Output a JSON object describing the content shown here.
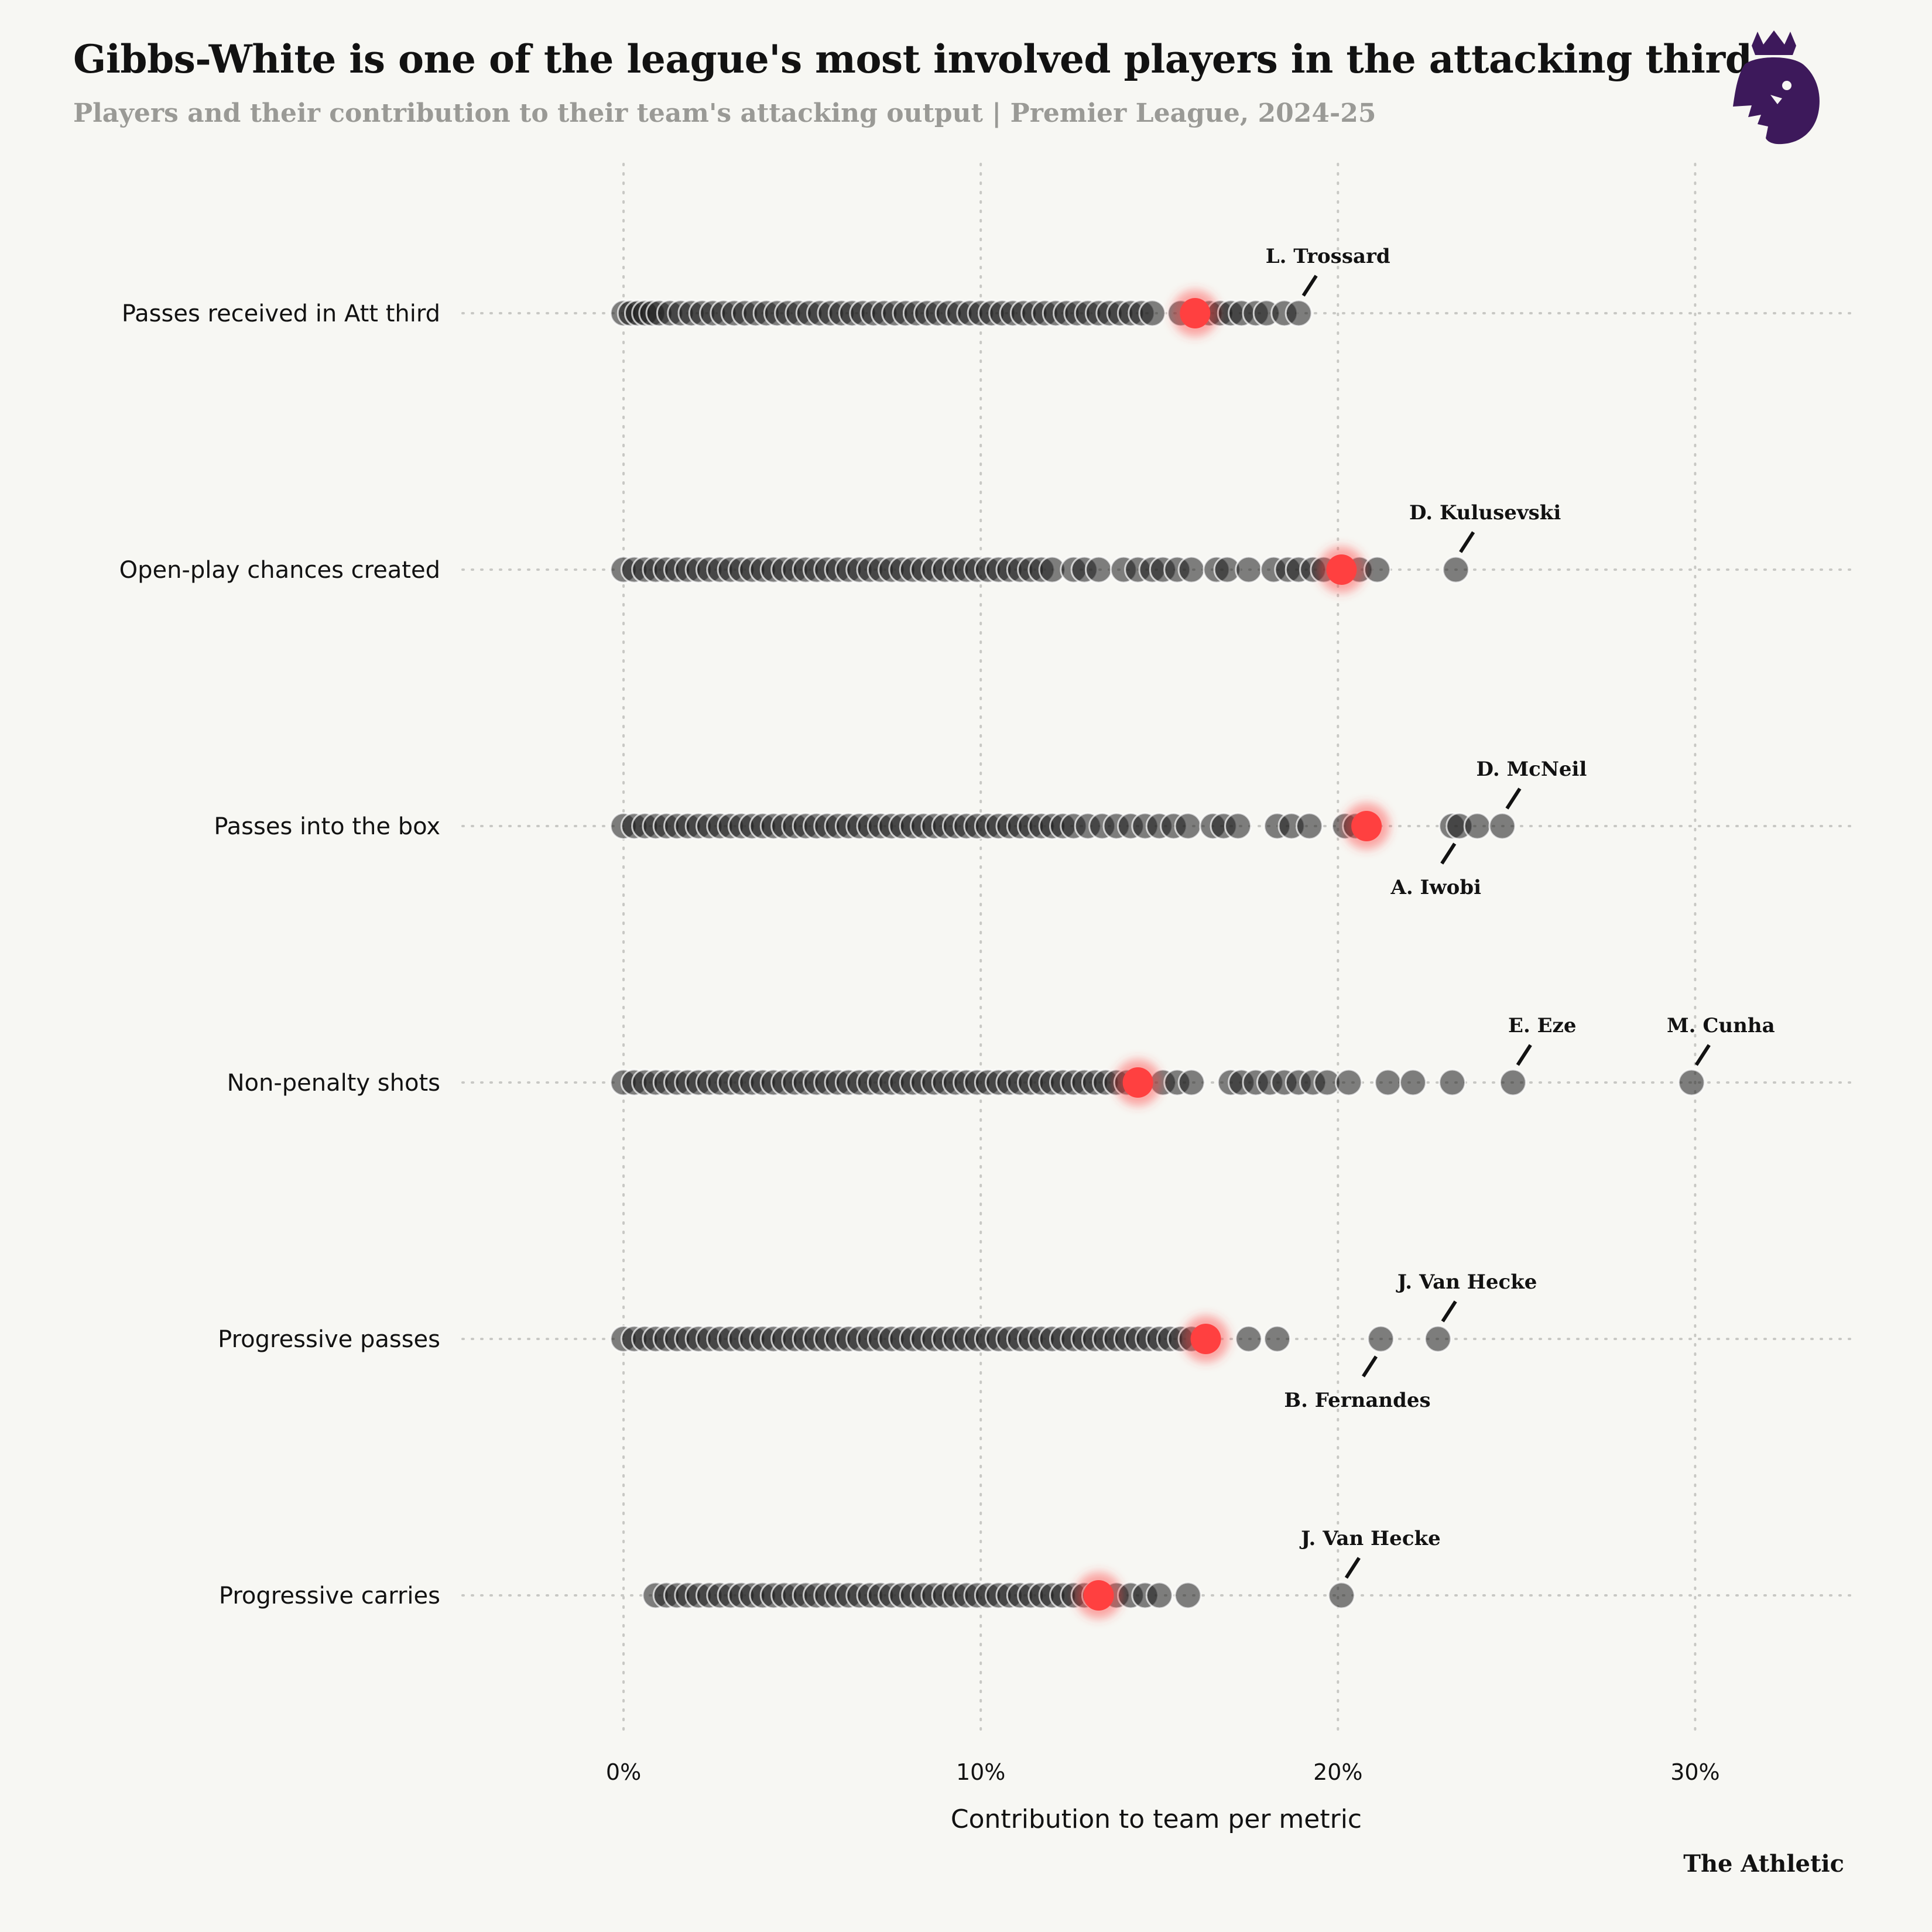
{
  "header": {
    "title": "Gibbs-White is one of the league's most involved players in the attacking third",
    "subtitle": "Players and their contribution to their team's attacking output | Premier League, 2024-25"
  },
  "footer": {
    "source": "The Athletic"
  },
  "colors": {
    "background": "#f7f7f3",
    "dot": "#1a1a1a",
    "highlight": "#ff4040",
    "grid": "#c8c8c4"
  },
  "icons": {
    "logo": "premier-league-lion-icon"
  },
  "chart_data": {
    "type": "scatter",
    "subtype": "strip-plot",
    "xlabel": "Contribution to team per metric",
    "xlim": [
      -5,
      34.5
    ],
    "xticks": [
      0,
      10,
      20,
      30
    ],
    "xtick_labels": [
      "0%",
      "10%",
      "20%",
      "30%"
    ],
    "grid": true,
    "categories": [
      "Passes received in Att third",
      "Open-play chances created",
      "Passes into the box",
      "Non-penalty shots",
      "Progressive passes",
      "Progressive carries"
    ],
    "series": [
      {
        "highlight": 16.0,
        "values": [
          0,
          0.2,
          0.4,
          0.6,
          0.8,
          1.0,
          1.3,
          1.6,
          1.9,
          2.2,
          2.5,
          2.8,
          3.1,
          3.4,
          3.7,
          4.0,
          4.3,
          4.6,
          4.9,
          5.2,
          5.5,
          5.8,
          6.1,
          6.4,
          6.7,
          7.0,
          7.3,
          7.6,
          7.9,
          8.2,
          8.5,
          8.8,
          9.1,
          9.4,
          9.7,
          10.0,
          10.3,
          10.6,
          10.9,
          11.2,
          11.5,
          11.8,
          12.1,
          12.4,
          12.7,
          13.0,
          13.3,
          13.6,
          13.9,
          14.2,
          14.5,
          14.8,
          15.6,
          16.4,
          16.7,
          17.0,
          17.3,
          17.7,
          18.0,
          18.5,
          18.9
        ]
      },
      {
        "highlight": 20.1,
        "values": [
          0,
          0.3,
          0.6,
          0.9,
          1.2,
          1.5,
          1.8,
          2.1,
          2.4,
          2.7,
          3.0,
          3.3,
          3.6,
          3.9,
          4.2,
          4.5,
          4.8,
          5.1,
          5.4,
          5.7,
          6.0,
          6.3,
          6.6,
          6.9,
          7.2,
          7.5,
          7.8,
          8.1,
          8.4,
          8.7,
          9.0,
          9.3,
          9.6,
          9.9,
          10.2,
          10.5,
          10.8,
          11.1,
          11.4,
          11.7,
          12.0,
          12.6,
          12.9,
          13.3,
          14.0,
          14.4,
          14.8,
          15.1,
          15.5,
          15.9,
          16.6,
          16.9,
          17.5,
          18.2,
          18.6,
          18.9,
          19.3,
          19.6,
          20.6,
          21.1,
          23.3
        ]
      },
      {
        "highlight": 20.8,
        "values": [
          0,
          0.3,
          0.6,
          0.9,
          1.2,
          1.5,
          1.8,
          2.1,
          2.4,
          2.7,
          3.0,
          3.3,
          3.6,
          3.9,
          4.2,
          4.5,
          4.8,
          5.1,
          5.4,
          5.7,
          6.0,
          6.3,
          6.6,
          6.9,
          7.2,
          7.5,
          7.8,
          8.1,
          8.4,
          8.7,
          9.0,
          9.3,
          9.6,
          9.9,
          10.2,
          10.5,
          10.8,
          11.1,
          11.4,
          11.7,
          12.0,
          12.3,
          12.6,
          13.0,
          13.4,
          13.8,
          14.2,
          14.6,
          15.0,
          15.4,
          15.8,
          16.5,
          16.8,
          17.2,
          18.3,
          18.7,
          19.2,
          20.2,
          20.5,
          23.2,
          23.4,
          23.9,
          24.6
        ]
      },
      {
        "highlight": 14.4,
        "values": [
          0,
          0.3,
          0.6,
          0.9,
          1.2,
          1.5,
          1.8,
          2.1,
          2.4,
          2.7,
          3.0,
          3.3,
          3.6,
          3.9,
          4.2,
          4.5,
          4.8,
          5.1,
          5.4,
          5.7,
          6.0,
          6.3,
          6.6,
          6.9,
          7.2,
          7.5,
          7.8,
          8.1,
          8.4,
          8.7,
          9.0,
          9.3,
          9.6,
          9.9,
          10.2,
          10.5,
          10.8,
          11.1,
          11.4,
          11.7,
          12.0,
          12.3,
          12.6,
          12.9,
          13.2,
          13.5,
          13.8,
          14.1,
          15.1,
          15.5,
          15.9,
          17.0,
          17.3,
          17.7,
          18.1,
          18.5,
          18.9,
          19.3,
          19.7,
          20.3,
          21.4,
          22.1,
          23.2,
          24.9,
          29.9
        ]
      },
      {
        "highlight": 16.3,
        "values": [
          0,
          0.3,
          0.6,
          0.9,
          1.2,
          1.5,
          1.8,
          2.1,
          2.4,
          2.7,
          3.0,
          3.3,
          3.6,
          3.9,
          4.2,
          4.5,
          4.8,
          5.1,
          5.4,
          5.7,
          6.0,
          6.3,
          6.6,
          6.9,
          7.2,
          7.5,
          7.8,
          8.1,
          8.4,
          8.7,
          9.0,
          9.3,
          9.6,
          9.9,
          10.2,
          10.5,
          10.8,
          11.1,
          11.4,
          11.7,
          12.0,
          12.3,
          12.6,
          12.9,
          13.2,
          13.5,
          13.8,
          14.1,
          14.4,
          14.7,
          15.0,
          15.3,
          15.6,
          15.9,
          17.5,
          18.3,
          21.2,
          22.8
        ]
      },
      {
        "highlight": 13.3,
        "values": [
          0.9,
          1.2,
          1.5,
          1.8,
          2.1,
          2.4,
          2.7,
          3.0,
          3.3,
          3.6,
          3.9,
          4.2,
          4.5,
          4.8,
          5.1,
          5.4,
          5.7,
          6.0,
          6.3,
          6.6,
          6.9,
          7.2,
          7.5,
          7.8,
          8.1,
          8.4,
          8.7,
          9.0,
          9.3,
          9.6,
          9.9,
          10.2,
          10.5,
          10.8,
          11.1,
          11.4,
          11.7,
          12.0,
          12.3,
          12.6,
          12.9,
          13.2,
          13.8,
          14.2,
          14.6,
          15.0,
          15.8,
          20.1
        ]
      }
    ],
    "annotations": [
      {
        "row": 0,
        "value": 18.9,
        "label": "L. Trossard",
        "position": "above"
      },
      {
        "row": 1,
        "value": 23.3,
        "label": "D. Kulusevski",
        "position": "above"
      },
      {
        "row": 2,
        "value": 24.6,
        "label": "D. McNeil",
        "position": "above"
      },
      {
        "row": 2,
        "value": 23.4,
        "label": "A. Iwobi",
        "position": "below"
      },
      {
        "row": 3,
        "value": 24.9,
        "label": "E. Eze",
        "position": "above"
      },
      {
        "row": 3,
        "value": 29.9,
        "label": "M. Cunha",
        "position": "above"
      },
      {
        "row": 4,
        "value": 22.8,
        "label": "J. Van Hecke",
        "position": "above"
      },
      {
        "row": 4,
        "value": 21.2,
        "label": "B. Fernandes",
        "position": "below"
      },
      {
        "row": 5,
        "value": 20.1,
        "label": "J. Van Hecke",
        "position": "above"
      }
    ]
  }
}
